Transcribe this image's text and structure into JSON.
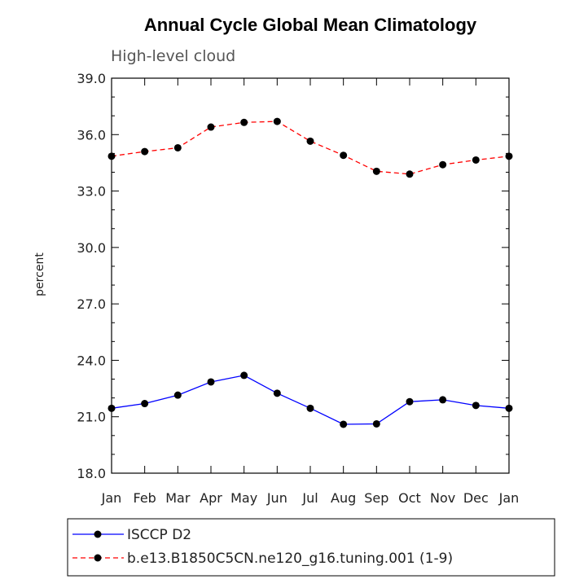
{
  "chart_data": {
    "type": "line",
    "title": "Annual Cycle Global Mean Climatology",
    "subtitle": "High-level cloud",
    "ylabel": "percent",
    "xlabel": "",
    "categories": [
      "Jan",
      "Feb",
      "Mar",
      "Apr",
      "May",
      "Jun",
      "Jul",
      "Aug",
      "Sep",
      "Oct",
      "Nov",
      "Dec",
      "Jan"
    ],
    "ylim": [
      18.0,
      39.0
    ],
    "yticks": [
      "18.0",
      "21.0",
      "24.0",
      "27.0",
      "30.0",
      "33.0",
      "36.0",
      "39.0"
    ],
    "series": [
      {
        "name": "ISCCP D2",
        "color": "#0000ff",
        "dash": "solid",
        "values": [
          21.45,
          21.7,
          22.15,
          22.85,
          23.2,
          22.25,
          21.45,
          20.6,
          20.62,
          21.8,
          21.9,
          21.6,
          21.45
        ]
      },
      {
        "name": "b.e13.B1850C5CN.ne120_g16.tuning.001 (1-9)",
        "color": "#ff0000",
        "dash": "dashed",
        "values": [
          34.85,
          35.1,
          35.3,
          36.4,
          36.65,
          36.7,
          35.65,
          34.9,
          34.05,
          33.9,
          34.4,
          34.65,
          34.85
        ]
      }
    ],
    "grid": false,
    "legend_position": "bottom"
  }
}
